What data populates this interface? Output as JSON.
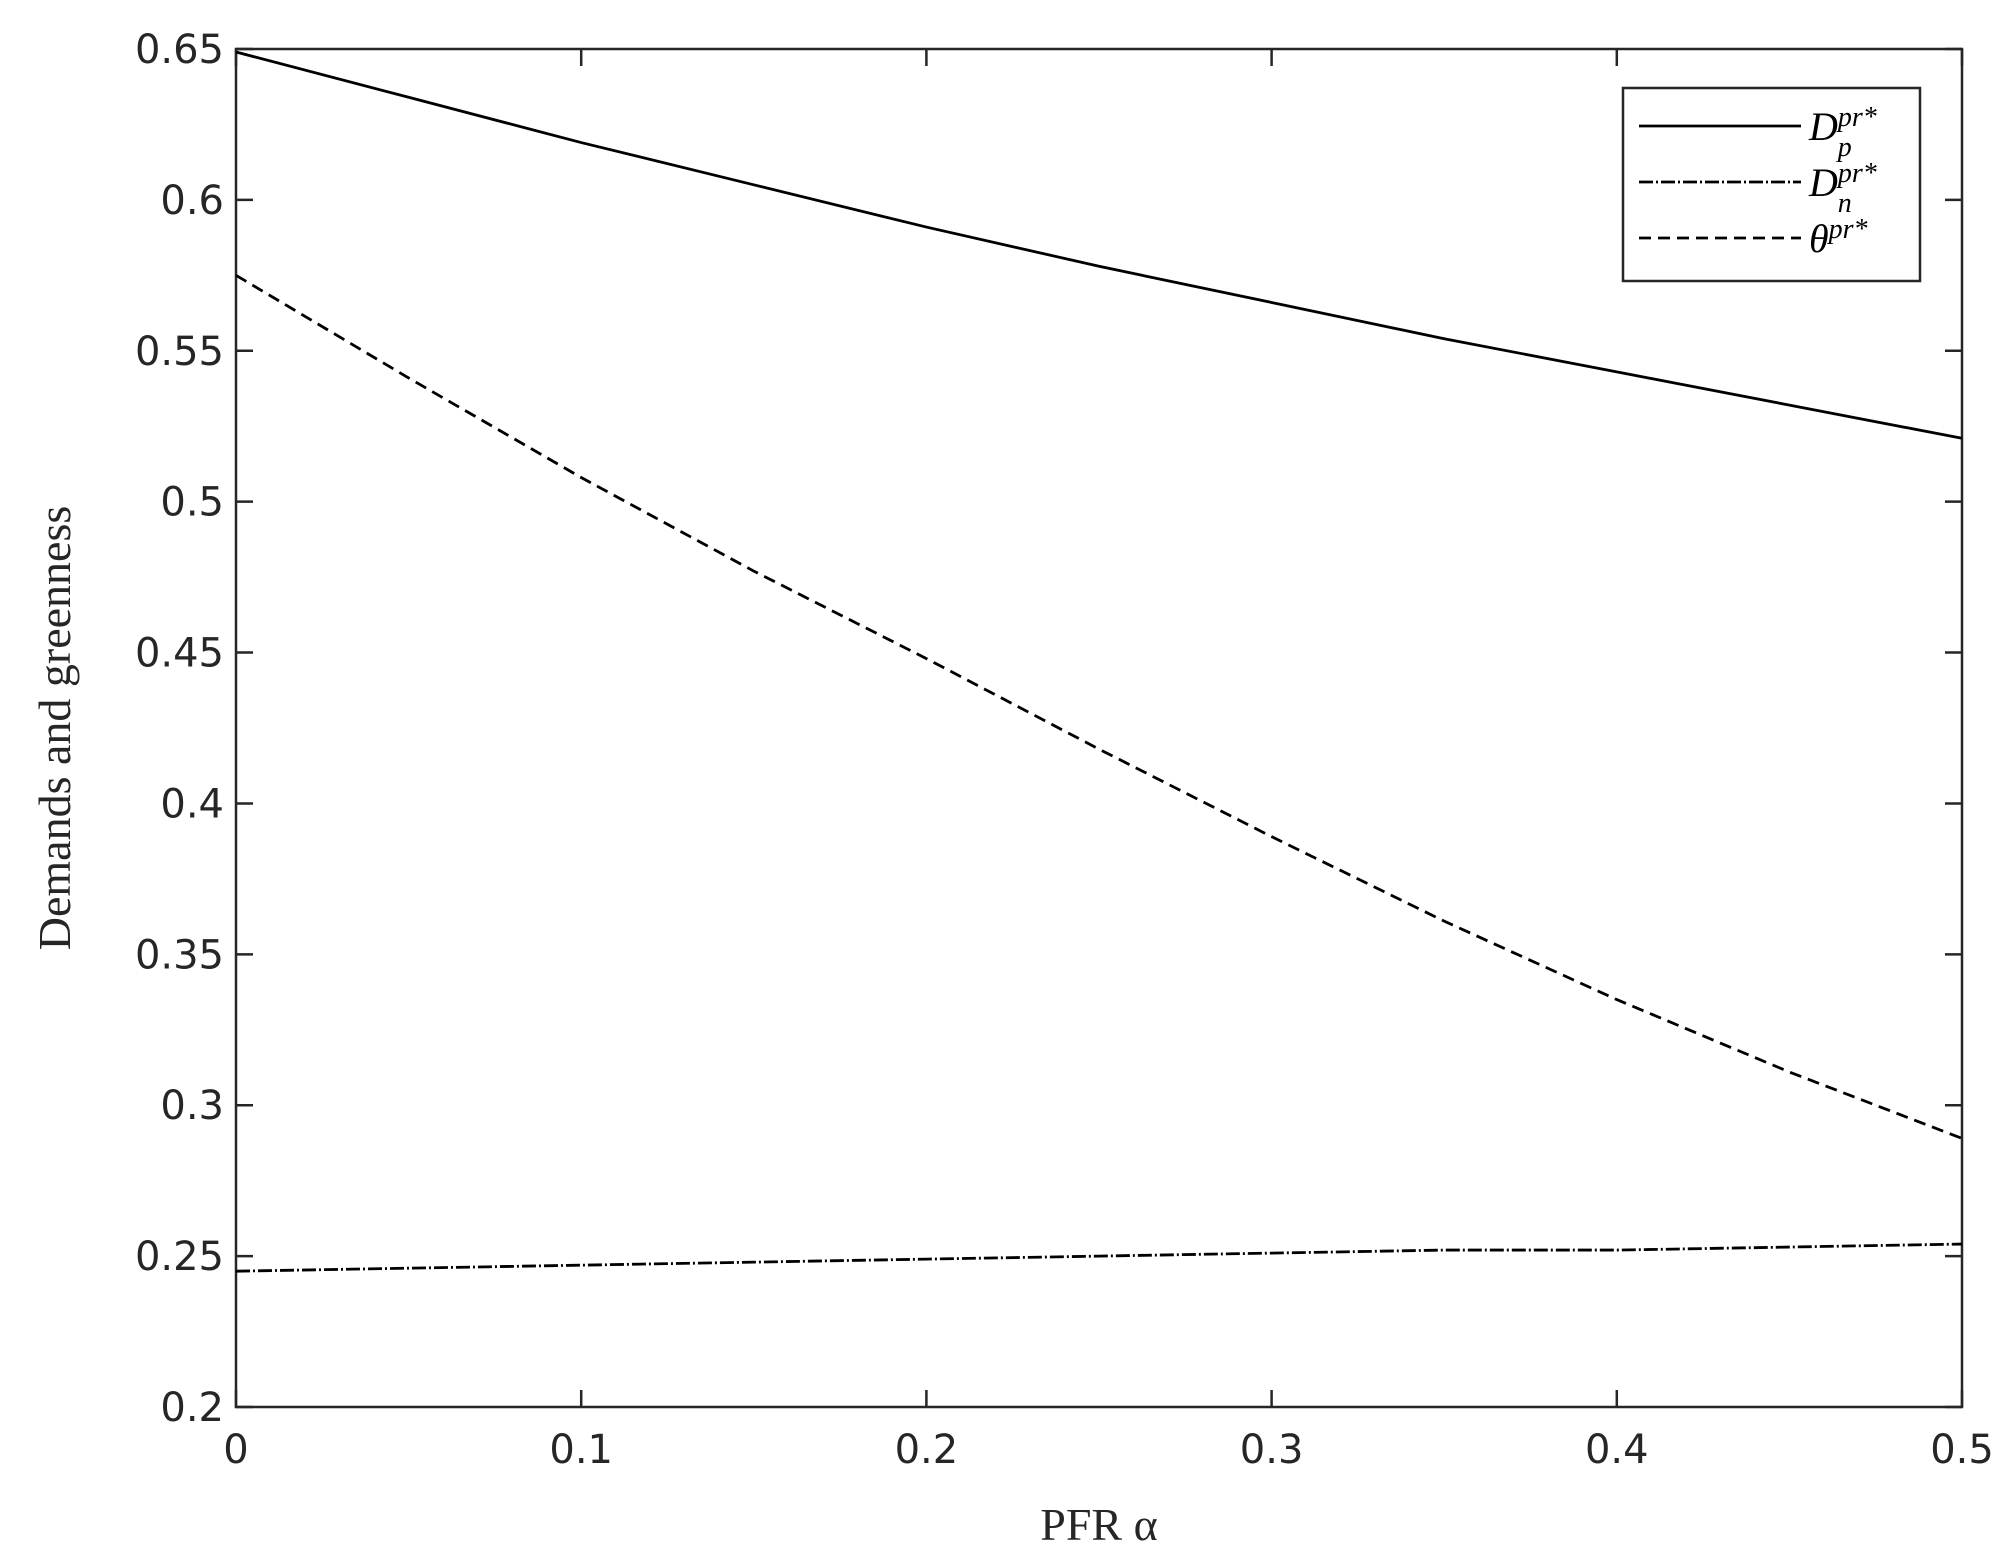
{
  "chart_data": {
    "type": "line",
    "x_label": "PFR α",
    "y_label": "Demands and greenness",
    "x": [
      0,
      0.05,
      0.1,
      0.15,
      0.2,
      0.25,
      0.3,
      0.35,
      0.4,
      0.45,
      0.5
    ],
    "series": [
      {
        "name": "D_p^{pr*}",
        "color": "#000000",
        "dash": "solid",
        "values": [
          0.649,
          0.634,
          0.619,
          0.605,
          0.591,
          0.578,
          0.566,
          0.554,
          0.543,
          0.532,
          0.521
        ]
      },
      {
        "name": "D_n^{pr*}",
        "color": "#000000",
        "dash": "dashdot",
        "values": [
          0.245,
          0.246,
          0.247,
          0.248,
          0.249,
          0.25,
          0.251,
          0.252,
          0.252,
          0.253,
          0.254
        ]
      },
      {
        "name": "θ^{pr*}",
        "color": "#000000",
        "dash": "dashed",
        "values": [
          0.575,
          0.541,
          0.508,
          0.477,
          0.448,
          0.418,
          0.389,
          0.361,
          0.335,
          0.311,
          0.289
        ]
      }
    ],
    "xlim": [
      0,
      0.5
    ],
    "xticks": [
      0,
      0.1,
      0.2,
      0.3,
      0.4,
      0.5
    ],
    "ylim": [
      0.2,
      0.65
    ],
    "yticks": [
      0.2,
      0.25,
      0.3,
      0.35,
      0.4,
      0.45,
      0.5,
      0.55,
      0.6,
      0.65
    ],
    "grid": false,
    "legend": "top-right"
  }
}
